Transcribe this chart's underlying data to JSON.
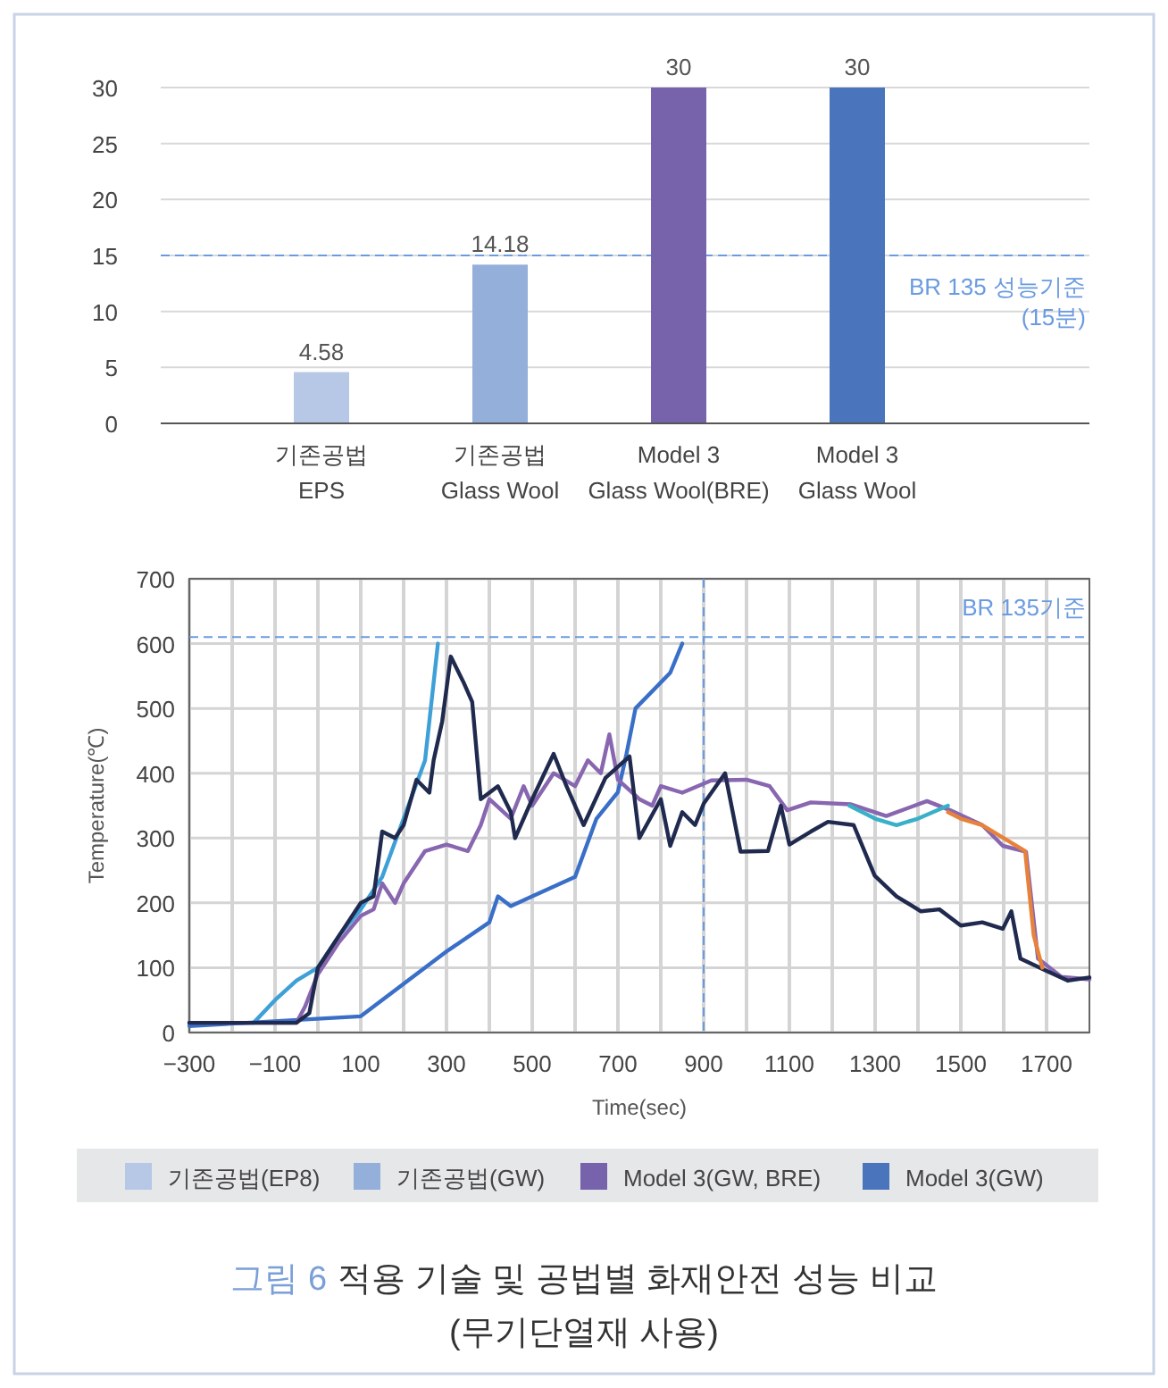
{
  "chart_data": [
    {
      "type": "bar",
      "stacked": true,
      "categories": [
        "기존공법\nEPS",
        "기존공법\nGlass Wool",
        "Model 3\nGlass Wool(BRE)",
        "Model 3\nGlass Wool"
      ],
      "series": [
        {
          "name": "기존공법(EP8)",
          "color": "#b7c7e6",
          "values": [
            4.58,
            null,
            null,
            null
          ]
        },
        {
          "name": "기존공법(GW)",
          "color": "#94afd9",
          "values": [
            null,
            14.18,
            null,
            null
          ]
        },
        {
          "name": "Model 3(GW, BRE)",
          "color": "#7663ab",
          "values": [
            null,
            null,
            30,
            null
          ]
        },
        {
          "name": "Model 3(GW)",
          "color": "#4a74bc",
          "values": [
            null,
            null,
            null,
            30
          ]
        }
      ],
      "ylim": [
        0,
        30
      ],
      "yticks": [
        0,
        5,
        10,
        15,
        20,
        25,
        30
      ],
      "grid": "y",
      "data_labels": true,
      "legend": "bottom",
      "ref_lines": [
        {
          "axis": "y",
          "value": 15,
          "label": "BR 135 성능기준\n(15분)",
          "color": "#6a9be0",
          "line_style": "dashed"
        }
      ]
    },
    {
      "type": "line",
      "xlabel": "Time(sec)",
      "ylabel": "Temperature(℃)",
      "xlim": [
        -300,
        1800
      ],
      "ylim": [
        0,
        700
      ],
      "xticks": [
        -300,
        {
          "value": -200,
          "label": null
        },
        -100,
        {
          "value": 0,
          "label": null
        },
        100,
        {
          "value": 200,
          "label": null
        },
        300,
        {
          "value": 400,
          "label": null
        },
        500,
        {
          "value": 600,
          "label": null
        },
        700,
        {
          "value": 800,
          "label": null
        },
        900,
        {
          "value": 1000,
          "label": null
        },
        1100,
        {
          "value": 1200,
          "label": null
        },
        1300,
        {
          "value": 1400,
          "label": null
        },
        1500,
        {
          "value": 1600,
          "label": null
        },
        1700
      ],
      "yticks": [
        0,
        100,
        200,
        300,
        400,
        500,
        600,
        700
      ],
      "grid": true,
      "marker": "none",
      "line_style": "solid",
      "ref_lines": [
        {
          "axis": "y",
          "value": 610,
          "label": "BR 135기준",
          "color": "#6a9be0",
          "line_style": "dashed"
        },
        {
          "axis": "x",
          "value": 900,
          "color": "#6a9be0",
          "line_style": "dashed"
        }
      ],
      "series": [
        {
          "color": "#3fa0d8",
          "x": [
            -300,
            -150,
            -100,
            -50,
            0,
            50,
            100,
            150,
            200,
            250,
            280
          ],
          "values": [
            15,
            15,
            50,
            80,
            100,
            150,
            190,
            240,
            330,
            420,
            600
          ]
        },
        {
          "color": "#3a6fc8",
          "x": [
            -300,
            100,
            200,
            300,
            400,
            420,
            450,
            500,
            600,
            650,
            700,
            720,
            741,
            822,
            850
          ],
          "values": [
            10,
            25,
            75,
            125,
            170,
            210,
            195,
            210,
            240,
            330,
            371,
            430,
            500,
            555,
            600
          ]
        },
        {
          "color": "#8866b0",
          "x": [
            -300,
            -50,
            -30,
            0,
            50,
            100,
            130,
            150,
            180,
            200,
            230,
            250,
            300,
            350,
            380,
            400,
            450,
            480,
            500,
            550,
            600,
            630,
            660,
            680,
            700,
            750,
            780,
            800,
            850,
            918,
            1000,
            1054,
            1095,
            1150,
            1244,
            1326,
            1421,
            1475,
            1550,
            1598,
            1652,
            1680,
            1734,
            1800
          ],
          "values": [
            15,
            15,
            40,
            90,
            140,
            180,
            190,
            230,
            200,
            230,
            260,
            280,
            290,
            280,
            320,
            360,
            330,
            380,
            350,
            400,
            380,
            420,
            400,
            460,
            390,
            360,
            350,
            380,
            370,
            389,
            390,
            380,
            343,
            355,
            352,
            334,
            357,
            343,
            320,
            288,
            279,
            114,
            86,
            82
          ]
        },
        {
          "color": "#1f2a4e",
          "x": [
            -300,
            -50,
            -20,
            0,
            50,
            100,
            130,
            150,
            180,
            200,
            230,
            260,
            270,
            290,
            310,
            340,
            360,
            380,
            420,
            450,
            460,
            500,
            550,
            580,
            620,
            671,
            727,
            750,
            800,
            822,
            850,
            880,
            900,
            950,
            986,
            1050,
            1080,
            1100,
            1150,
            1190,
            1250,
            1299,
            1350,
            1407,
            1450,
            1500,
            1550,
            1598,
            1618,
            1639,
            1700,
            1750,
            1800
          ],
          "values": [
            15,
            15,
            30,
            100,
            150,
            200,
            210,
            310,
            300,
            320,
            390,
            370,
            420,
            480,
            580,
            540,
            510,
            360,
            380,
            340,
            300,
            360,
            430,
            380,
            320,
            393,
            426,
            300,
            360,
            288,
            340,
            320,
            353,
            400,
            279,
            280,
            350,
            290,
            310,
            325,
            320,
            242,
            210,
            187,
            190,
            165,
            170,
            160,
            187,
            114,
            95,
            80,
            85
          ]
        },
        {
          "color": "#3ab0c8",
          "x": [
            1240,
            1300,
            1350,
            1400,
            1470
          ],
          "values": [
            350,
            330,
            320,
            330,
            350
          ]
        },
        {
          "color": "#e8823a",
          "x": [
            1470,
            1500,
            1550,
            1600,
            1650,
            1670,
            1690
          ],
          "values": [
            340,
            330,
            320,
            300,
            280,
            150,
            100
          ]
        }
      ],
      "annotations": [
        "그림 6",
        "적용 기술 및 공법별 화재안전 성능 비교",
        "(무기단열재 사용)"
      ]
    }
  ]
}
